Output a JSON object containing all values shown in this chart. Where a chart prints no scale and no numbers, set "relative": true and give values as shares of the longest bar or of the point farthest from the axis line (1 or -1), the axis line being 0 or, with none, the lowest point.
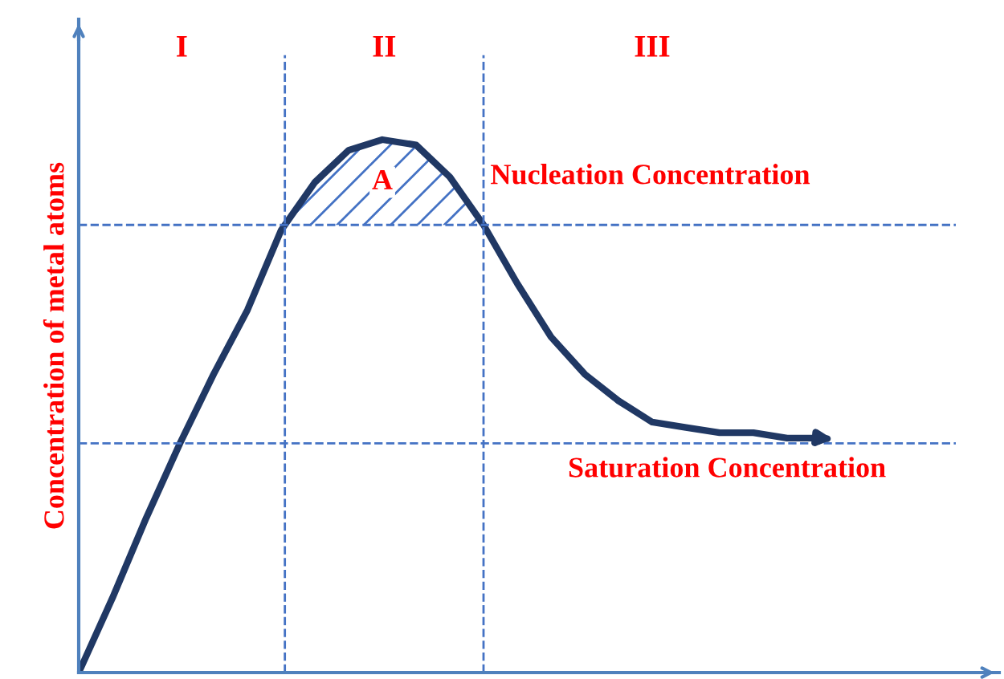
{
  "chart_data": {
    "type": "line",
    "relative": true,
    "ylabel": "Concentration of metal atoms",
    "categories": [
      null,
      null,
      null,
      null,
      null,
      null,
      null,
      null,
      null,
      null,
      null,
      null,
      null,
      null,
      null,
      null,
      null,
      null,
      null,
      null,
      null,
      null,
      null
    ],
    "series": [
      {
        "color": "#203864",
        "values": [
          0,
          0.14,
          0.29,
          0.43,
          0.56,
          0.68,
          0.83,
          0.92,
          0.98,
          1,
          0.99,
          0.93,
          0.84,
          0.73,
          0.63,
          0.56,
          0.51,
          0.47,
          0.46,
          0.45,
          0.45,
          0.44,
          0.44
        ]
      }
    ],
    "ref_lines": [
      {
        "axis": "y",
        "value": 0.84,
        "label": "Nucleation Concentration",
        "color": "#4472c4",
        "line_style": "dashed"
      },
      {
        "axis": "y",
        "value": 0.43,
        "label": "Saturation Concentration",
        "color": "#4472c4",
        "line_style": "dashed"
      }
    ],
    "annotations": [
      "I",
      "II",
      "III",
      "A"
    ]
  }
}
